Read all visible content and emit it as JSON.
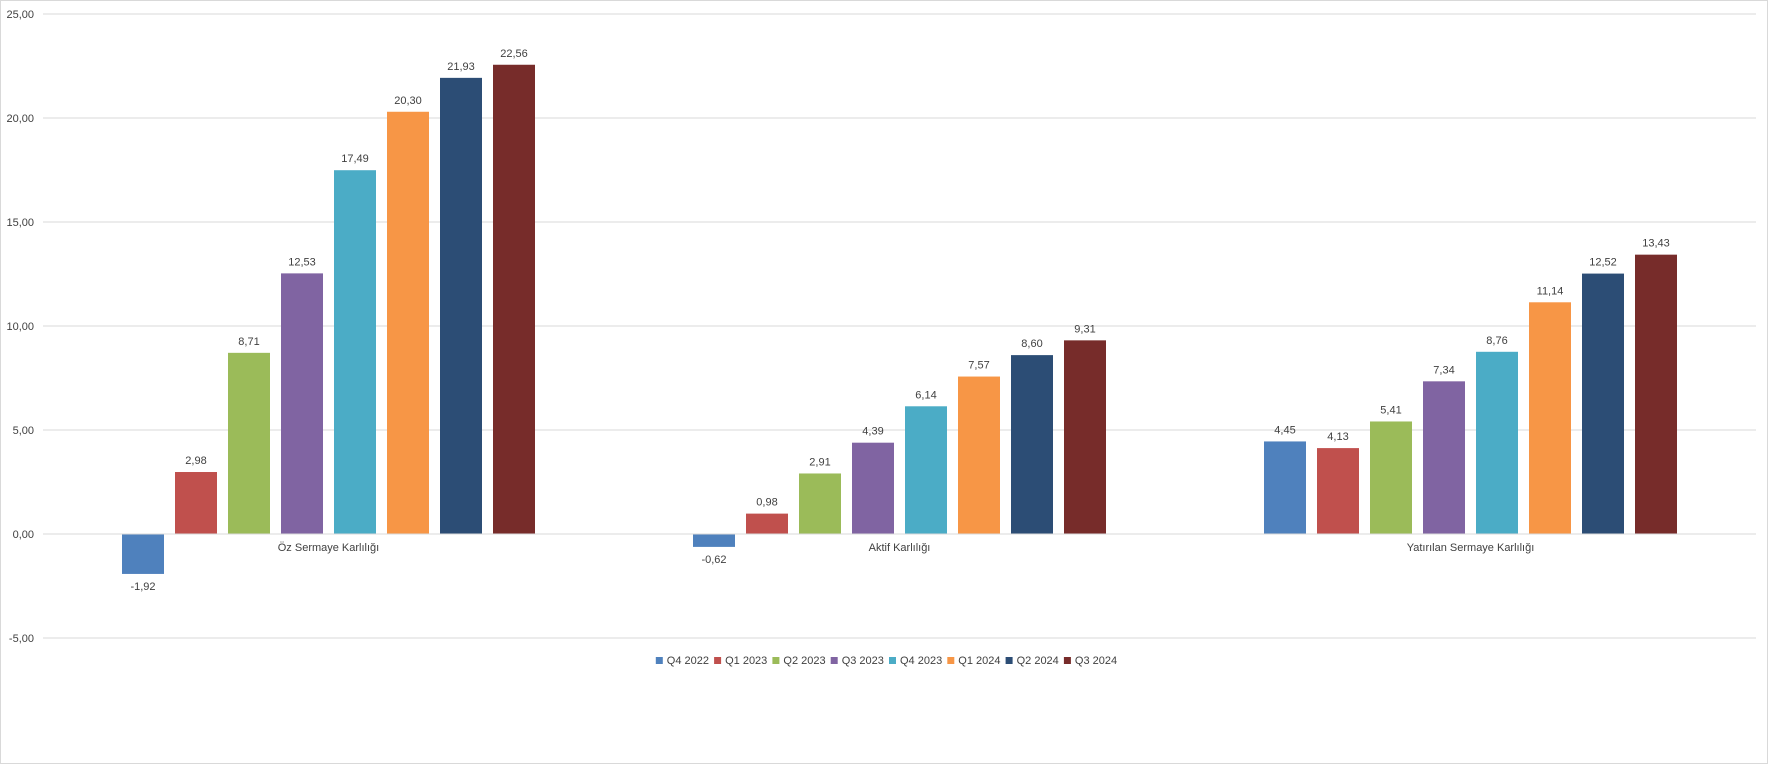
{
  "chart_data": {
    "type": "bar",
    "categories": [
      "Öz Sermaye Karlılığı",
      "Aktif Karlılığı",
      "Yatırılan Sermaye Karlılığı"
    ],
    "series": [
      {
        "name": "Q4 2022",
        "color": "#4f81bd",
        "values": [
          -1.92,
          -0.62,
          4.45
        ],
        "labels": [
          "-1,92",
          "-0,62",
          "4,45"
        ]
      },
      {
        "name": "Q1 2023",
        "color": "#c0504d",
        "values": [
          2.98,
          0.98,
          4.13
        ],
        "labels": [
          "2,98",
          "0,98",
          "4,13"
        ]
      },
      {
        "name": "Q2 2023",
        "color": "#9bbb59",
        "values": [
          8.71,
          2.91,
          5.41
        ],
        "labels": [
          "8,71",
          "2,91",
          "5,41"
        ]
      },
      {
        "name": "Q3 2023",
        "color": "#8064a2",
        "values": [
          12.53,
          4.39,
          7.34
        ],
        "labels": [
          "12,53",
          "4,39",
          "7,34"
        ]
      },
      {
        "name": "Q4 2023",
        "color": "#4bacc6",
        "values": [
          17.49,
          6.14,
          8.76
        ],
        "labels": [
          "17,49",
          "6,14",
          "8,76"
        ]
      },
      {
        "name": "Q1 2024",
        "color": "#f79646",
        "values": [
          20.3,
          7.57,
          11.14
        ],
        "labels": [
          "20,30",
          "7,57",
          "11,14"
        ]
      },
      {
        "name": "Q2 2024",
        "color": "#2c4d75",
        "values": [
          21.93,
          8.6,
          12.52
        ],
        "labels": [
          "21,93",
          "8,60",
          "12,52"
        ]
      },
      {
        "name": "Q3 2024",
        "color": "#772c2a",
        "values": [
          22.56,
          9.31,
          13.43
        ],
        "labels": [
          "22,56",
          "9,31",
          "13,43"
        ]
      }
    ],
    "y_ticks": [
      -5,
      0,
      5,
      10,
      15,
      20,
      25
    ],
    "y_tick_labels": [
      "-5,00",
      "0,00",
      "5,00",
      "10,00",
      "15,00",
      "20,00",
      "25,00"
    ],
    "ylim": [
      -5,
      25
    ],
    "grid": true,
    "legend_position": "bottom"
  }
}
